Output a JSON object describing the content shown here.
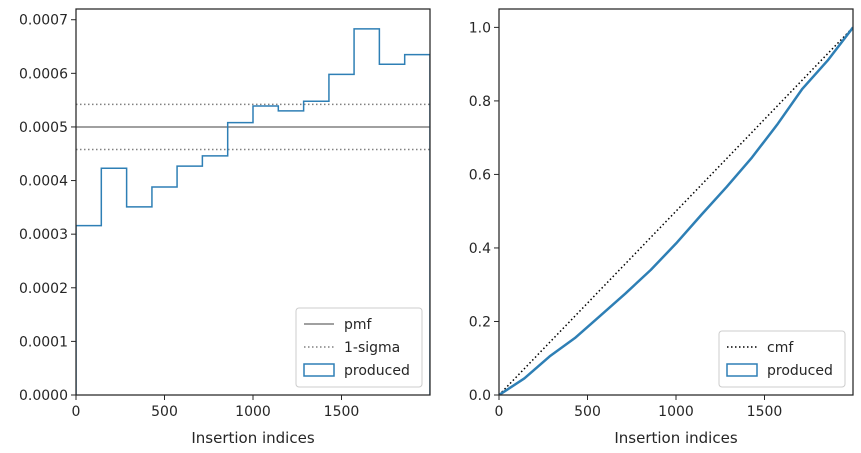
{
  "chart_data": [
    {
      "type": "step",
      "xlabel": "Insertion indices",
      "ylabel": "",
      "title": "",
      "xlim": [
        0,
        2000
      ],
      "ylim": [
        0,
        0.00072
      ],
      "xticks": [
        0,
        500,
        1000,
        1500
      ],
      "xtick_labels": [
        "0",
        "500",
        "1000",
        "1500"
      ],
      "yticks": [
        0,
        0.0001,
        0.0002,
        0.0003,
        0.0004,
        0.0005,
        0.0006,
        0.0007
      ],
      "ytick_labels": [
        "0.0000",
        "0.0001",
        "0.0002",
        "0.0003",
        "0.0004",
        "0.0005",
        "0.0006",
        "0.0007"
      ],
      "bin_edges": [
        0,
        143,
        286,
        429,
        571,
        714,
        857,
        1000,
        1143,
        1286,
        1429,
        1571,
        1714,
        1857,
        2000
      ],
      "produced": [
        0.000316,
        0.000423,
        0.000351,
        0.000388,
        0.000427,
        0.000446,
        0.000508,
        0.000539,
        0.00053,
        0.000548,
        0.000598,
        0.000683,
        0.000617,
        0.000635
      ],
      "pmf": 0.0005,
      "sigma_band": [
        0.000458,
        0.000542
      ],
      "legend": {
        "placement": "lower right",
        "entries": [
          {
            "label": "pmf",
            "style": "solid",
            "color": "#808080"
          },
          {
            "label": "1-sigma",
            "style": "dotted",
            "color": "#808080"
          },
          {
            "label": "produced",
            "style": "box",
            "color": "#2e7fb5"
          }
        ]
      }
    },
    {
      "type": "line",
      "xlabel": "Insertion indices",
      "ylabel": "",
      "title": "",
      "xlim": [
        0,
        2000
      ],
      "ylim": [
        0,
        1.05
      ],
      "xticks": [
        0,
        500,
        1000,
        1500
      ],
      "xtick_labels": [
        "0",
        "500",
        "1000",
        "1500"
      ],
      "yticks": [
        0,
        0.2,
        0.4,
        0.6,
        0.8,
        1.0
      ],
      "ytick_labels": [
        "0.0",
        "0.2",
        "0.4",
        "0.6",
        "0.8",
        "1.0"
      ],
      "cmf": {
        "x": [
          0,
          2000
        ],
        "y": [
          0,
          1.0
        ]
      },
      "produced": {
        "x": [
          0,
          143,
          286,
          429,
          571,
          714,
          857,
          1000,
          1143,
          1286,
          1429,
          1571,
          1714,
          1857,
          2000
        ],
        "y": [
          0,
          0.045,
          0.105,
          0.155,
          0.215,
          0.276,
          0.34,
          0.412,
          0.49,
          0.566,
          0.646,
          0.735,
          0.833,
          0.91,
          1.0
        ]
      },
      "legend": {
        "placement": "lower right",
        "entries": [
          {
            "label": "cmf",
            "style": "dotted",
            "color": "#000000"
          },
          {
            "label": "produced",
            "style": "box",
            "color": "#2e7fb5"
          }
        ]
      }
    }
  ]
}
